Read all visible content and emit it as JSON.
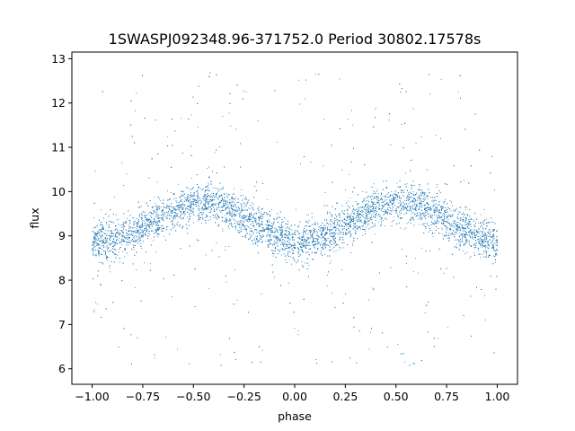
{
  "chart_data": {
    "type": "scatter",
    "title": "1SWASPJ092348.96-371752.0 Period 30802.17578s",
    "xlabel": "phase",
    "ylabel": "flux",
    "xlim": [
      -1.1,
      1.1
    ],
    "ylim": [
      5.65,
      13.15
    ],
    "xticks": [
      -1.0,
      -0.75,
      -0.5,
      -0.25,
      0.0,
      0.25,
      0.5,
      0.75,
      1.0
    ],
    "xtick_labels": [
      "−1.00",
      "−0.75",
      "−0.50",
      "−0.25",
      "0.00",
      "0.25",
      "0.50",
      "0.75",
      "1.00"
    ],
    "yticks": [
      6,
      7,
      8,
      9,
      10,
      11,
      12,
      13
    ],
    "ytick_labels": [
      "6",
      "7",
      "8",
      "9",
      "10",
      "11",
      "12",
      "13"
    ],
    "grid": false,
    "marker_color": "#1f77b4",
    "series": [
      {
        "phase": [
          -1.0,
          -0.9,
          -0.8,
          -0.7,
          -0.6,
          -0.5,
          -0.45,
          -0.4,
          -0.3,
          -0.2,
          -0.1,
          0.0,
          0.05,
          0.1,
          0.2,
          0.3,
          0.4,
          0.5,
          0.55,
          0.6,
          0.7,
          0.8,
          0.9,
          1.0
        ],
        "flux_mean": [
          8.85,
          8.9,
          9.05,
          9.3,
          9.55,
          9.72,
          9.75,
          9.72,
          9.55,
          9.25,
          9.0,
          8.88,
          8.85,
          8.9,
          9.1,
          9.4,
          9.62,
          9.72,
          9.75,
          9.7,
          9.5,
          9.2,
          8.98,
          8.85
        ],
        "flux_scatter_sd": 0.22,
        "flux_range": [
          6.0,
          12.7
        ]
      }
    ]
  }
}
